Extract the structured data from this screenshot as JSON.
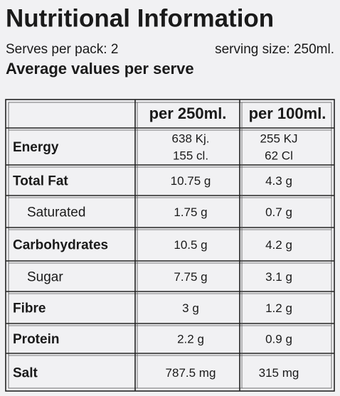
{
  "header": {
    "title": "Nutritional Information",
    "serves": "Serves per pack: 2",
    "serving_size": "serving size: 250ml.",
    "subtitle": "Average values per serve"
  },
  "table": {
    "columns": [
      "per 250ml.",
      "per 100ml."
    ],
    "rows": [
      {
        "label": "Energy",
        "values": [
          [
            "638 Kj.",
            "155 cl."
          ],
          [
            "255 KJ",
            "62 Cl"
          ]
        ]
      },
      {
        "label": "Total Fat",
        "values": [
          "10.75 g",
          "4.3 g"
        ]
      },
      {
        "label": "Saturated",
        "values": [
          "1.75 g",
          "0.7 g"
        ]
      },
      {
        "label": "Carbohydrates",
        "values": [
          "10.5 g",
          "4.2 g"
        ]
      },
      {
        "label": "Sugar",
        "values": [
          "7.75 g",
          "3.1 g"
        ]
      },
      {
        "label": "Fibre",
        "values": [
          "3 g",
          "1.2 g"
        ]
      },
      {
        "label": "Protein",
        "values": [
          "2.2 g",
          "0.9 g"
        ]
      },
      {
        "label": "Salt",
        "values": [
          "787.5 mg",
          "315 mg"
        ]
      }
    ]
  }
}
